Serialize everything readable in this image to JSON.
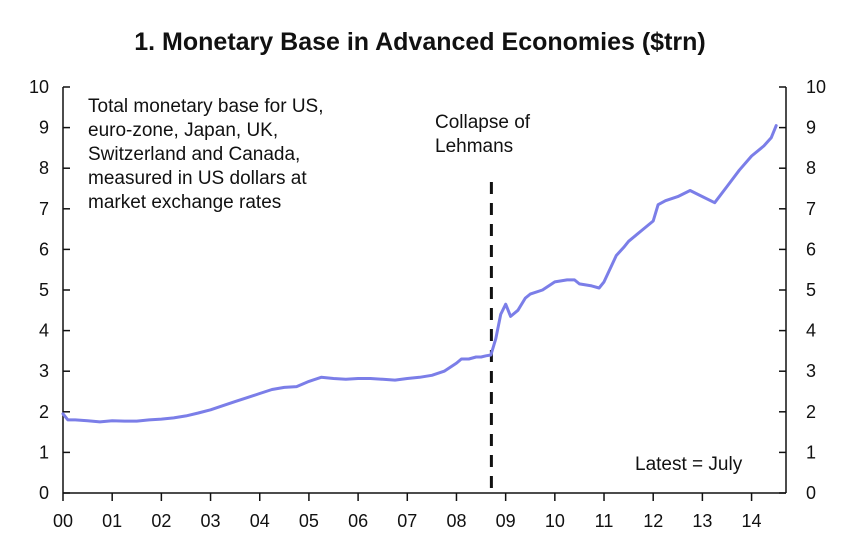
{
  "chart_data": {
    "type": "line",
    "title": "1. Monetary Base in Advanced Economies ($trn)",
    "xlabel": "",
    "ylabel": "",
    "x_tick_labels": [
      "00",
      "01",
      "02",
      "03",
      "04",
      "05",
      "06",
      "07",
      "08",
      "09",
      "10",
      "11",
      "12",
      "13",
      "14"
    ],
    "y_tick_labels": [
      "0",
      "1",
      "2",
      "3",
      "4",
      "5",
      "6",
      "7",
      "8",
      "9",
      "10"
    ],
    "xlim": [
      2000.0,
      2014.7
    ],
    "ylim": [
      0,
      10
    ],
    "grid": false,
    "line_color": "#7b7ee8",
    "annotations": {
      "description": [
        "Total monetary base for US,",
        "euro-zone, Japan, UK,",
        "Switzerland and Canada,",
        "measured in US dollars at",
        "market exchange rates"
      ],
      "event": [
        "Collapse of",
        "Lehmans"
      ],
      "event_x": 2008.71,
      "latest": "Latest = July"
    },
    "series": [
      {
        "x": [
          2000.0,
          2000.1,
          2000.25,
          2000.5,
          2000.75,
          2001.0,
          2001.25,
          2001.5,
          2001.75,
          2002.0,
          2002.25,
          2002.5,
          2002.75,
          2003.0,
          2003.25,
          2003.5,
          2003.75,
          2004.0,
          2004.25,
          2004.5,
          2004.75,
          2005.0,
          2005.25,
          2005.5,
          2005.75,
          2006.0,
          2006.25,
          2006.5,
          2006.75,
          2007.0,
          2007.25,
          2007.5,
          2007.75,
          2008.0,
          2008.1,
          2008.25,
          2008.4,
          2008.5,
          2008.6,
          2008.7,
          2008.8,
          2008.9,
          2009.0,
          2009.1,
          2009.25,
          2009.4,
          2009.5,
          2009.75,
          2010.0,
          2010.25,
          2010.4,
          2010.5,
          2010.75,
          2010.9,
          2011.0,
          2011.25,
          2011.4,
          2011.5,
          2011.75,
          2012.0,
          2012.1,
          2012.25,
          2012.5,
          2012.75,
          2013.0,
          2013.25,
          2013.5,
          2013.75,
          2014.0,
          2014.25,
          2014.4,
          2014.5
        ],
        "y": [
          1.95,
          1.8,
          1.8,
          1.78,
          1.75,
          1.78,
          1.77,
          1.77,
          1.8,
          1.82,
          1.85,
          1.9,
          1.97,
          2.05,
          2.15,
          2.25,
          2.35,
          2.45,
          2.55,
          2.6,
          2.62,
          2.75,
          2.85,
          2.82,
          2.8,
          2.82,
          2.82,
          2.8,
          2.78,
          2.82,
          2.85,
          2.9,
          3.0,
          3.2,
          3.3,
          3.3,
          3.35,
          3.35,
          3.38,
          3.4,
          3.8,
          4.4,
          4.65,
          4.35,
          4.5,
          4.8,
          4.9,
          5.0,
          5.2,
          5.25,
          5.25,
          5.15,
          5.1,
          5.05,
          5.2,
          5.85,
          6.05,
          6.2,
          6.45,
          6.7,
          7.1,
          7.2,
          7.3,
          7.45,
          7.3,
          7.15,
          7.55,
          7.95,
          8.3,
          8.55,
          8.75,
          9.05
        ]
      }
    ]
  }
}
